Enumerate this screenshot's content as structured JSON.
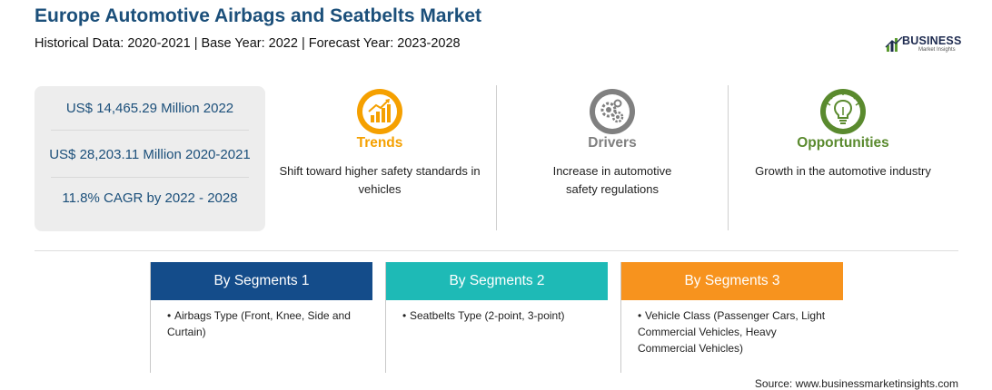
{
  "header": {
    "title": "Europe Automotive Airbags and Seatbelts Market",
    "subtitle": "Historical Data: 2020-2021 | Base Year: 2022 | Forecast Year: 2023-2028"
  },
  "logo": {
    "word": "BUSINESS",
    "sub": "Market Insights",
    "colors": {
      "primary": "#1e2b50",
      "accent": "#5a9a2e"
    }
  },
  "stats": [
    {
      "text": "US$ 14,465.29 Million 2022"
    },
    {
      "text": "US$ 28,203.11 Million 2020-2021"
    },
    {
      "text": "11.8% CAGR by 2022 - 2028"
    }
  ],
  "features": [
    {
      "title": "Trends",
      "description": "Shift toward higher safety standards in vehicles",
      "color": "#f5a000",
      "icon": "growth-chart-icon"
    },
    {
      "title": "Drivers",
      "description": "Increase in automotive safety regulations",
      "color": "#7f7f7f",
      "icon": "gears-icon"
    },
    {
      "title": "Opportunities",
      "description": "Growth in the automotive industry",
      "color": "#5a8a2e",
      "icon": "lightbulb-icon"
    }
  ],
  "segments": [
    {
      "title": "By Segments 1",
      "color": "#144c8a",
      "item": "Airbags Type (Front, Knee, Side and Curtain)"
    },
    {
      "title": "By Segments 2",
      "color": "#1ebab6",
      "item": "Seatbelts Type (2-point, 3-point)"
    },
    {
      "title": "By Segments 3",
      "color": "#f7931e",
      "item": "Vehicle Class (Passenger Cars, Light Commercial Vehicles, Heavy Commercial Vehicles)"
    }
  ],
  "footer": {
    "source": "Source: www.businessmarketinsights.com"
  }
}
